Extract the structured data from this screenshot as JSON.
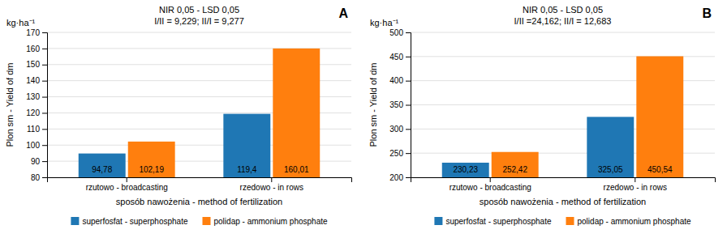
{
  "chart_data": [
    {
      "type": "bar",
      "title": "A",
      "xlabel": "sposób nawożenia - method of fertilization",
      "ylabel": "Plon sm - Yield of dm",
      "annotations": [
        "kg·ha⁻¹",
        "NIR 0,05 - LSD 0,05",
        "I/II = 9,229; II/I = 9,277"
      ],
      "categories": [
        "rzutowo - broadcasting",
        "rzedowo - in rows"
      ],
      "series": [
        {
          "name": "superfosfat - superphosphate",
          "values": [
            94.78,
            119.4
          ],
          "value_labels": [
            "94,78",
            "119,4"
          ]
        },
        {
          "name": "polidap - ammonium phosphate",
          "values": [
            102.19,
            160.01
          ],
          "value_labels": [
            "102,19",
            "160,01"
          ]
        }
      ],
      "ylim": [
        80,
        170
      ],
      "yticks": [
        80,
        90,
        100,
        110,
        120,
        130,
        140,
        150,
        160,
        170
      ],
      "grid": true,
      "legend": "bottom",
      "data_labels": true
    },
    {
      "type": "bar",
      "title": "B",
      "xlabel": "sposób nawożenia - method of fertilization",
      "ylabel": "Plon sm - Yield of dm",
      "annotations": [
        "kg·ha⁻¹",
        "NIR 0,05 - LSD 0,05",
        "I/II =24,162; II/I = 12,683"
      ],
      "categories": [
        "rzutowo - broadcasting",
        "rzedowo - in rows"
      ],
      "series": [
        {
          "name": "superfosfat - superphosphate",
          "values": [
            230.23,
            325.05
          ],
          "value_labels": [
            "230,23",
            "325,05"
          ]
        },
        {
          "name": "polidap - ammonium phosphate",
          "values": [
            252.42,
            450.54
          ],
          "value_labels": [
            "252,42",
            "450,54"
          ]
        }
      ],
      "ylim": [
        200,
        500
      ],
      "yticks": [
        200,
        250,
        300,
        350,
        400,
        450,
        500
      ],
      "grid": true,
      "legend": "bottom",
      "data_labels": true
    }
  ]
}
